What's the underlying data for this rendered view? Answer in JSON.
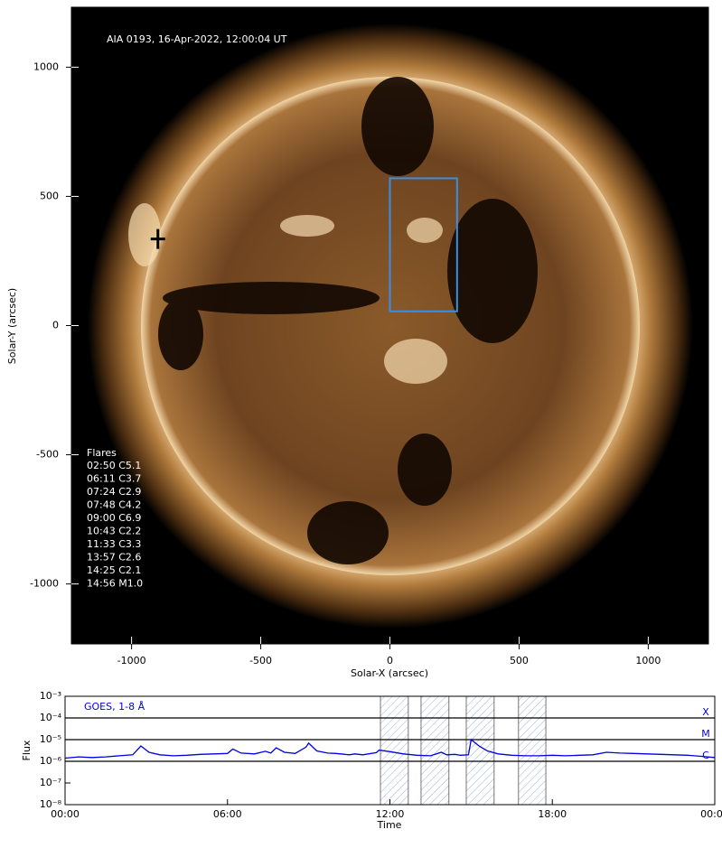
{
  "chart_data": [
    {
      "type": "image",
      "title": "AIA 0193, 16-Apr-2022, 12:00:04 UT",
      "xlabel": "Solar-X (arcsec)",
      "ylabel": "Solar-Y (arcsec)",
      "xlim": [
        -1233,
        1233
      ],
      "ylim": [
        -1232,
        1232
      ],
      "xticks": [
        -1000,
        -500,
        0,
        500,
        1000
      ],
      "yticks": [
        -1000,
        -500,
        0,
        500,
        1000
      ],
      "box": {
        "x": [
          0,
          260
        ],
        "y": [
          55,
          570
        ],
        "color": "#3a8ee6"
      },
      "marker": {
        "x": -898,
        "y": 335
      },
      "flares": {
        "title": "Flares",
        "items": [
          "02:50 C5.1",
          "06:11 C3.7",
          "07:24 C2.9",
          "07:48 C4.2",
          "09:00 C6.9",
          "10:43 C2.2",
          "11:33 C3.3",
          "13:57 C2.6",
          "14:25 C2.1",
          "14:56 M1.0"
        ]
      }
    },
    {
      "type": "line",
      "xlabel": "Time",
      "ylabel": "Flux",
      "yscale": "log",
      "xlim": [
        0,
        24
      ],
      "xticks": [
        {
          "value": 0,
          "label": "00:00"
        },
        {
          "value": 6,
          "label": "06:00"
        },
        {
          "value": 12,
          "label": "12:00"
        },
        {
          "value": 18,
          "label": "18:00"
        },
        {
          "value": 24,
          "label": "00:00"
        }
      ],
      "ylim": [
        1e-08,
        0.001
      ],
      "yticks": [
        {
          "value": 1e-08,
          "label": "10⁻⁸"
        },
        {
          "value": 1e-07,
          "label": "10⁻⁷"
        },
        {
          "value": 1e-06,
          "label": "10⁻⁶"
        },
        {
          "value": 1e-05,
          "label": "10⁻⁵"
        },
        {
          "value": 0.0001,
          "label": "10⁻⁴"
        },
        {
          "value": 0.001,
          "label": "10⁻³"
        }
      ],
      "hlines": [
        {
          "value": 0.0001,
          "label": "X"
        },
        {
          "value": 1e-05,
          "label": "M"
        },
        {
          "value": 1e-06,
          "label": "C"
        }
      ],
      "spans": [
        [
          11.65,
          12.68
        ],
        [
          13.15,
          14.18
        ],
        [
          14.82,
          15.85
        ],
        [
          16.75,
          17.76
        ]
      ],
      "series": [
        {
          "name": "GOES, 1-8 Å",
          "color": "#0000e0",
          "x": [
            0,
            0.5,
            1,
            1.5,
            2,
            2.5,
            2.8,
            3.1,
            3.5,
            4,
            4.5,
            5,
            5.5,
            6,
            6.2,
            6.5,
            7,
            7.4,
            7.6,
            7.8,
            8.1,
            8.5,
            8.9,
            9.0,
            9.3,
            9.7,
            10,
            10.5,
            10.7,
            11,
            11.5,
            11.6,
            12,
            12.5,
            13,
            13.5,
            13.9,
            14.1,
            14.4,
            14.6,
            14.9,
            15,
            15.3,
            15.6,
            16,
            16.5,
            17,
            17.5,
            18,
            18.5,
            19,
            19.5,
            20,
            20.5,
            21,
            21.5,
            22,
            22.5,
            23,
            23.5,
            24
          ],
          "values": [
            1.4e-06,
            1.6e-06,
            1.5e-06,
            1.6e-06,
            1.8e-06,
            2e-06,
            5.1e-06,
            2.6e-06,
            2e-06,
            1.8e-06,
            1.9e-06,
            2.1e-06,
            2.2e-06,
            2.3e-06,
            3.7e-06,
            2.4e-06,
            2.2e-06,
            2.9e-06,
            2.4e-06,
            4.2e-06,
            2.6e-06,
            2.3e-06,
            4.5e-06,
            6.9e-06,
            3e-06,
            2.4e-06,
            2.3e-06,
            2e-06,
            2.2e-06,
            2e-06,
            2.5e-06,
            3.3e-06,
            2.8e-06,
            2.2e-06,
            1.9e-06,
            1.8e-06,
            2.6e-06,
            2e-06,
            2.1e-06,
            1.9e-06,
            2e-06,
            1e-05,
            5e-06,
            3e-06,
            2.2e-06,
            1.9e-06,
            1.8e-06,
            1.8e-06,
            1.9e-06,
            1.8e-06,
            1.9e-06,
            2e-06,
            2.6e-06,
            2.4e-06,
            2.3e-06,
            2.2e-06,
            2.1e-06,
            2e-06,
            1.9e-06,
            1.7e-06,
            1.5e-06
          ]
        }
      ]
    }
  ]
}
